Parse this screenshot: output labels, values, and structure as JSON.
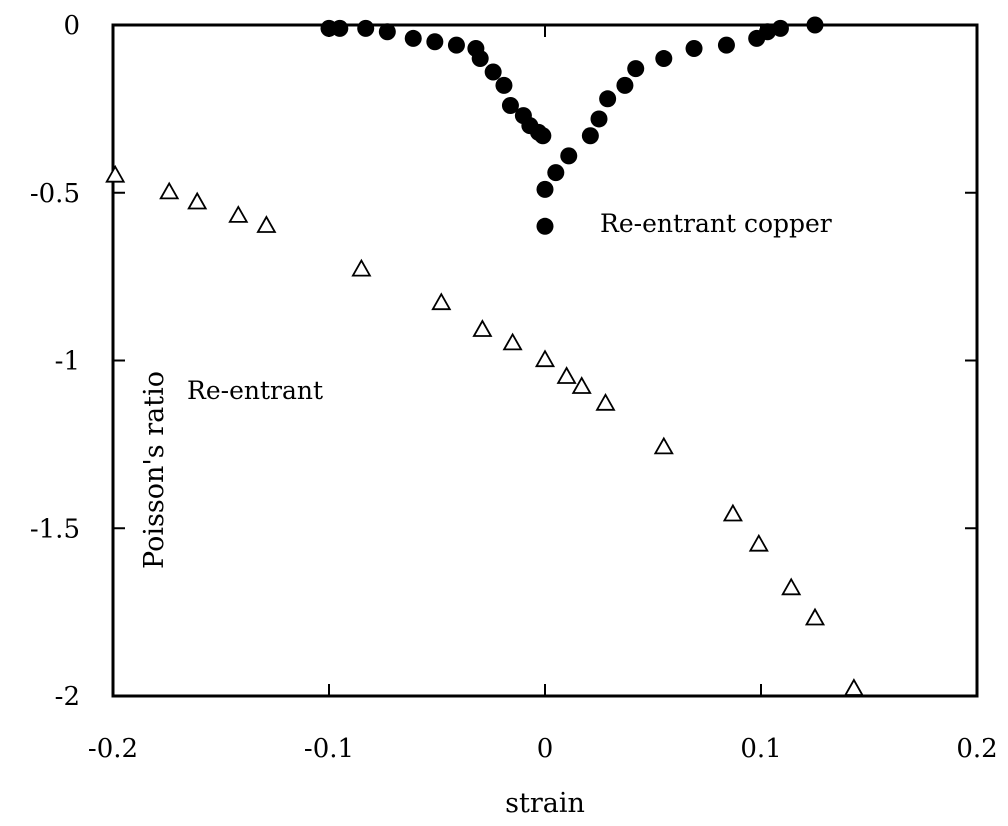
{
  "chart_data": {
    "type": "scatter",
    "title": "",
    "xlabel": "strain",
    "ylabel": "Poisson's ratio",
    "xlim": [
      -0.2,
      0.2
    ],
    "ylim": [
      -2,
      0
    ],
    "xticks": [
      -0.2,
      -0.1,
      0,
      0.1,
      0.2
    ],
    "xtick_labels": [
      "-0.2",
      "-0.1",
      "0",
      "0.1",
      "0.2"
    ],
    "yticks": [
      0,
      -0.5,
      -1,
      -1.5,
      -2
    ],
    "ytick_labels": [
      "0",
      "-0.5",
      "-1",
      "-1.5",
      "-2"
    ],
    "grid": false,
    "legend": "none",
    "annotations": [
      "Re-entrant copper",
      "Re-entrant"
    ],
    "series": [
      {
        "marker": "filled-circle",
        "color": "#000000",
        "points": [
          [
            -0.1,
            -0.01
          ],
          [
            -0.095,
            -0.01
          ],
          [
            -0.083,
            -0.01
          ],
          [
            -0.073,
            -0.02
          ],
          [
            -0.061,
            -0.04
          ],
          [
            -0.051,
            -0.05
          ],
          [
            -0.041,
            -0.06
          ],
          [
            -0.032,
            -0.07
          ],
          [
            -0.03,
            -0.1
          ],
          [
            -0.024,
            -0.14
          ],
          [
            -0.019,
            -0.18
          ],
          [
            -0.016,
            -0.24
          ],
          [
            -0.01,
            -0.27
          ],
          [
            -0.007,
            -0.3
          ],
          [
            -0.003,
            -0.32
          ],
          [
            -0.001,
            -0.33
          ],
          [
            0.0,
            -0.49
          ],
          [
            0.005,
            -0.44
          ],
          [
            0.011,
            -0.39
          ],
          [
            0.021,
            -0.33
          ],
          [
            0.025,
            -0.28
          ],
          [
            0.029,
            -0.22
          ],
          [
            0.037,
            -0.18
          ],
          [
            0.042,
            -0.13
          ],
          [
            0.055,
            -0.1
          ],
          [
            0.069,
            -0.07
          ],
          [
            0.084,
            -0.06
          ],
          [
            0.098,
            -0.04
          ],
          [
            0.103,
            -0.02
          ],
          [
            0.109,
            -0.01
          ],
          [
            0.125,
            0.0
          ],
          [
            0.0,
            -0.6
          ]
        ]
      },
      {
        "marker": "open-triangle",
        "color": "#000000",
        "points": [
          [
            -0.199,
            -0.45
          ],
          [
            -0.174,
            -0.5
          ],
          [
            -0.161,
            -0.53
          ],
          [
            -0.142,
            -0.57
          ],
          [
            -0.129,
            -0.6
          ],
          [
            -0.085,
            -0.73
          ],
          [
            -0.048,
            -0.83
          ],
          [
            -0.029,
            -0.91
          ],
          [
            -0.015,
            -0.95
          ],
          [
            0.0,
            -1.0
          ],
          [
            0.01,
            -1.05
          ],
          [
            0.017,
            -1.08
          ],
          [
            0.028,
            -1.13
          ],
          [
            0.055,
            -1.26
          ],
          [
            0.087,
            -1.46
          ],
          [
            0.099,
            -1.55
          ],
          [
            0.114,
            -1.68
          ],
          [
            0.125,
            -1.77
          ],
          [
            0.143,
            -1.98
          ]
        ]
      }
    ]
  }
}
